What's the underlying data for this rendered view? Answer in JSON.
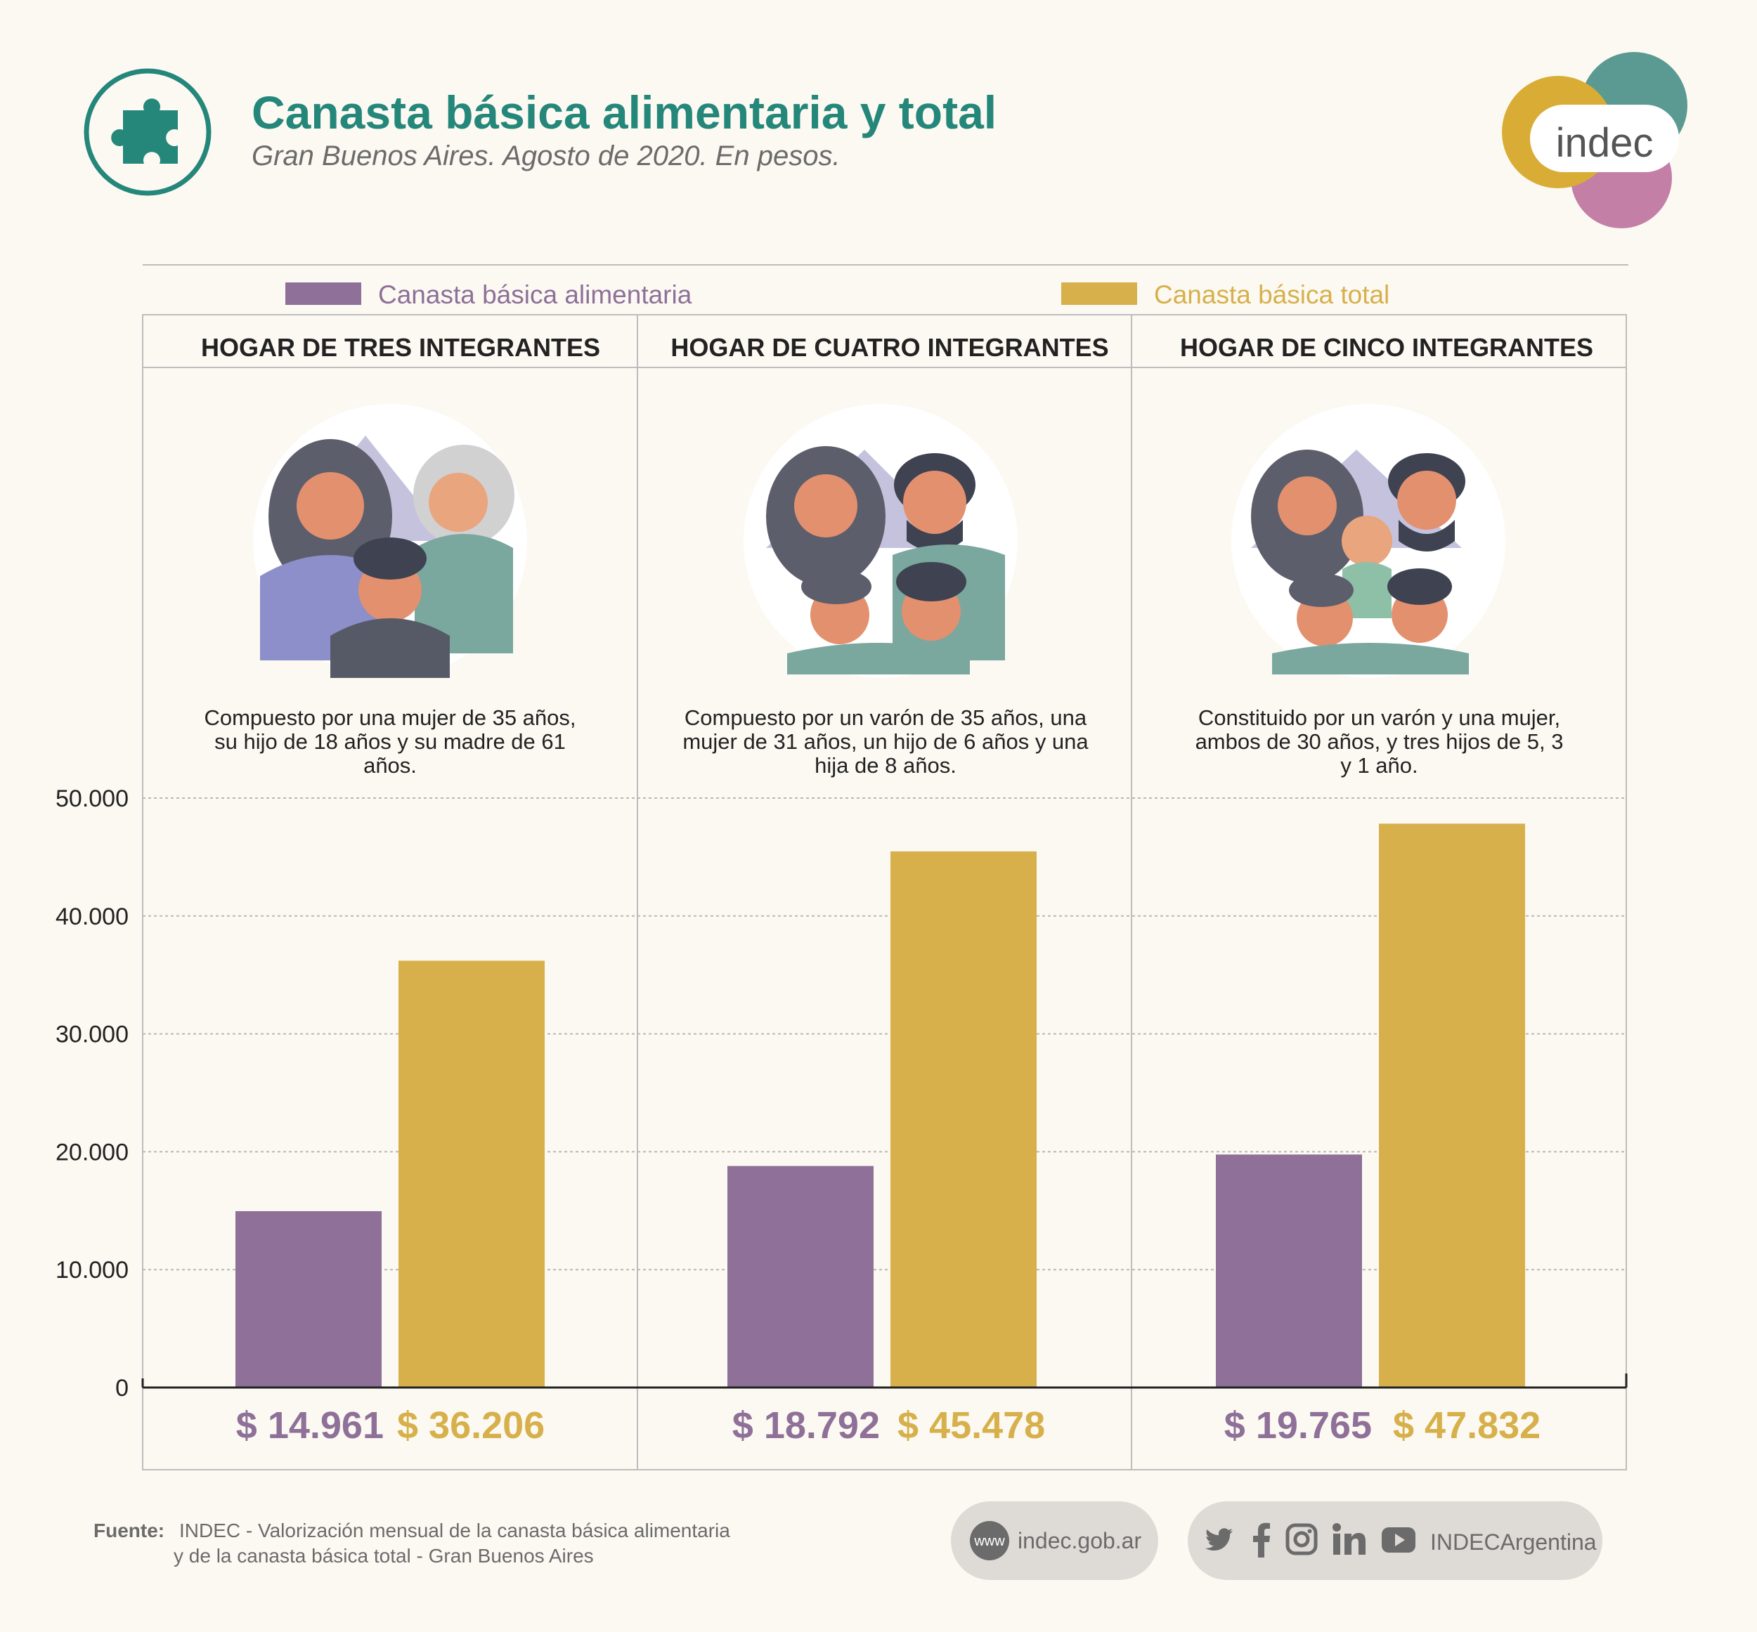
{
  "header": {
    "title": "Canasta básica alimentaria y total",
    "subtitle": "Gran Buenos Aires. Agosto de 2020. En pesos.",
    "logo_text": "indec"
  },
  "legend": {
    "alimentaria": "Canasta básica alimentaria",
    "total": "Canasta básica total"
  },
  "colors": {
    "alimentaria": "#8e7098",
    "total": "#d7b04b",
    "accent": "#24877a"
  },
  "panels": [
    {
      "heading": "HOGAR DE TRES INTEGRANTES",
      "description": "Compuesto por una mujer de 35 años, su hijo de 18 años y su madre de 61 años.",
      "value_alimentaria": "$ 14.961",
      "value_total": "$ 36.206"
    },
    {
      "heading": "HOGAR DE CUATRO INTEGRANTES",
      "description": "Compuesto por un varón de 35 años, una mujer de 31 años, un hijo de 6 años y una hija de 8 años.",
      "value_alimentaria": "$ 18.792",
      "value_total": "$ 45.478"
    },
    {
      "heading": "HOGAR DE CINCO INTEGRANTES",
      "description": "Constituido por un varón y una mujer, ambos de 30 años, y tres hijos de 5, 3 y 1 año.",
      "value_alimentaria": "$ 19.765",
      "value_total": "$ 47.832"
    }
  ],
  "chart_data": {
    "type": "bar",
    "categories": [
      "HOGAR DE TRES INTEGRANTES",
      "HOGAR DE CUATRO INTEGRANTES",
      "HOGAR DE CINCO INTEGRANTES"
    ],
    "series": [
      {
        "name": "Canasta básica alimentaria",
        "values": [
          14961,
          18792,
          19765
        ]
      },
      {
        "name": "Canasta básica total",
        "values": [
          36206,
          45478,
          47832
        ]
      }
    ],
    "title": "Canasta básica alimentaria y total",
    "subtitle": "Gran Buenos Aires. Agosto de 2020. En pesos.",
    "ylim": [
      0,
      50000
    ],
    "yticks": [
      0,
      10000,
      20000,
      30000,
      40000,
      50000
    ],
    "ytick_labels": [
      "0",
      "10.000",
      "20.000",
      "30.000",
      "40.000",
      "50.000"
    ],
    "grid": true,
    "legend": "top"
  },
  "footer": {
    "source_label": "Fuente:",
    "source_line1": "INDEC - Valorización mensual de la canasta básica alimentaria",
    "source_line2": "y de la canasta básica total - Gran Buenos Aires",
    "web_icon_text": "www",
    "web_text": "indec.gob.ar",
    "social_handle": "INDECArgentina",
    "social_icons": [
      "twitter-icon",
      "facebook-icon",
      "instagram-icon",
      "linkedin-icon",
      "youtube-icon"
    ]
  }
}
